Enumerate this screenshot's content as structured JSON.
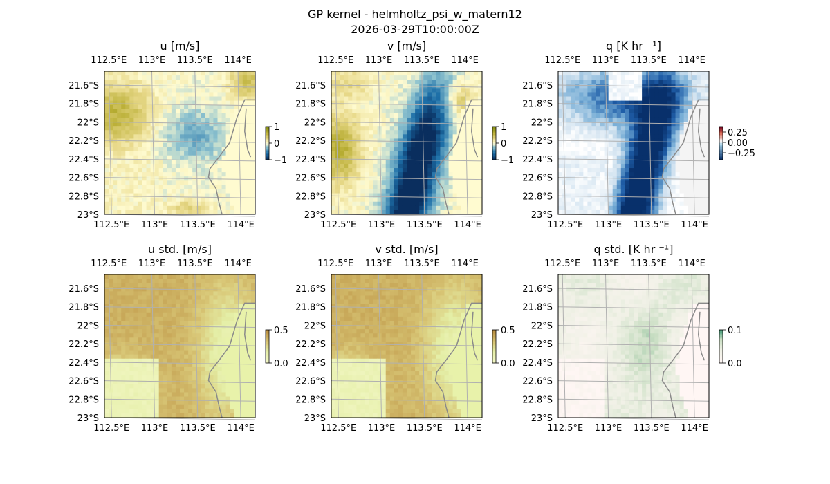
{
  "figure": {
    "title_line1": "GP kernel - helmholtz_psi_w_matern12",
    "title_line2": "2026-03-29T10:00:00Z"
  },
  "colors": {
    "land": "#f4f4f4",
    "coast": "#8a8a8a",
    "grid": "#b0b0b0",
    "sea_edge": "#9ab4d6"
  },
  "chart_data": [
    {
      "type": "heatmap",
      "title": "u [m/s]",
      "field": "u",
      "colormap": "yellow-olive-to-teal",
      "x_ticks": [
        "112.5°E",
        "113°E",
        "113.5°E",
        "114°E"
      ],
      "y_ticks": [
        "21.6°S",
        "21.8°S",
        "22°S",
        "22.2°S",
        "22.4°S",
        "22.6°S",
        "22.8°S",
        "23°S"
      ],
      "xlim": [
        112.45,
        114.2
      ],
      "ylim": [
        -23.0,
        -21.45
      ],
      "colorbar": {
        "ticks": [
          "1",
          "0",
          "−1"
        ],
        "range": [
          -1,
          1
        ]
      },
      "grid": true
    },
    {
      "type": "heatmap",
      "title": "v [m/s]",
      "field": "v",
      "colormap": "yellow-olive-to-teal",
      "x_ticks": [
        "112.5°E",
        "113°E",
        "113.5°E",
        "114°E"
      ],
      "y_ticks": [
        "21.6°S",
        "21.8°S",
        "22°S",
        "22.2°S",
        "22.4°S",
        "22.6°S",
        "22.8°S",
        "23°S"
      ],
      "xlim": [
        112.45,
        114.2
      ],
      "ylim": [
        -23.0,
        -21.45
      ],
      "colorbar": {
        "ticks": [
          "1",
          "0",
          "−1"
        ],
        "range": [
          -1,
          1
        ]
      },
      "grid": true
    },
    {
      "type": "heatmap",
      "title": "q [K hr ⁻¹]",
      "field": "q",
      "colormap": "white-to-dark-blue",
      "x_ticks": [
        "112.5°E",
        "113°E",
        "113.5°E",
        "114°E"
      ],
      "y_ticks": [
        "21.6°S",
        "21.8°S",
        "22°S",
        "22.2°S",
        "22.4°S",
        "22.6°S",
        "22.8°S",
        "23°S"
      ],
      "xlim": [
        112.45,
        114.2
      ],
      "ylim": [
        -23.0,
        -21.45
      ],
      "colorbar": {
        "ticks": [
          "0.25",
          "0.00",
          "−0.25"
        ],
        "range": [
          -0.35,
          0.35
        ]
      },
      "grid": true
    },
    {
      "type": "heatmap",
      "title": "u std. [m/s]",
      "field": "u_std",
      "colormap": "light-green-to-brown",
      "x_ticks": [
        "112.5°E",
        "113°E",
        "113.5°E",
        "114°E"
      ],
      "y_ticks": [
        "21.6°S",
        "21.8°S",
        "22°S",
        "22.2°S",
        "22.4°S",
        "22.6°S",
        "22.8°S",
        "23°S"
      ],
      "xlim": [
        112.45,
        114.2
      ],
      "ylim": [
        -23.0,
        -21.45
      ],
      "colorbar": {
        "ticks": [
          "0.5",
          "0.0"
        ],
        "range": [
          0,
          0.5
        ]
      },
      "grid": true
    },
    {
      "type": "heatmap",
      "title": "v std. [m/s]",
      "field": "v_std",
      "colormap": "light-green-to-brown",
      "x_ticks": [
        "112.5°E",
        "113°E",
        "113.5°E",
        "114°E"
      ],
      "y_ticks": [
        "21.6°S",
        "21.8°S",
        "22°S",
        "22.2°S",
        "22.4°S",
        "22.6°S",
        "22.8°S",
        "23°S"
      ],
      "xlim": [
        112.45,
        114.2
      ],
      "ylim": [
        -23.0,
        -21.45
      ],
      "colorbar": {
        "ticks": [
          "0.5",
          "0.0"
        ],
        "range": [
          0,
          0.5
        ]
      },
      "grid": true
    },
    {
      "type": "heatmap",
      "title": "q std. [K hr ⁻¹]",
      "field": "q_std",
      "colormap": "pale-pink-to-green",
      "x_ticks": [
        "112.5°E",
        "113°E",
        "113.5°E",
        "114°E"
      ],
      "y_ticks": [
        "21.6°S",
        "21.8°S",
        "22°S",
        "22.2°S",
        "22.4°S",
        "22.6°S",
        "22.8°S",
        "23°S"
      ],
      "xlim": [
        112.45,
        114.2
      ],
      "ylim": [
        -23.0,
        -21.45
      ],
      "colorbar": {
        "ticks": [
          "0.1",
          "0.0"
        ],
        "range": [
          0,
          0.15
        ]
      },
      "grid": true
    }
  ]
}
